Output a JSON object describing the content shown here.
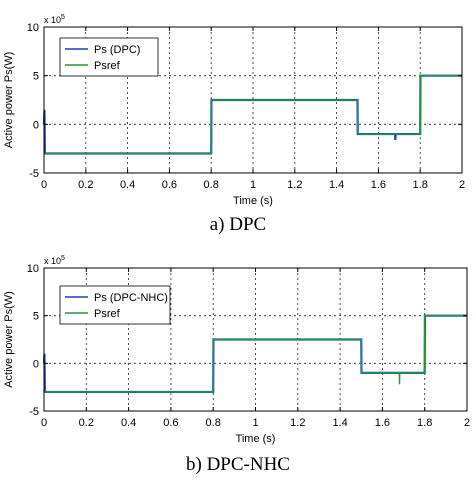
{
  "chart_data": [
    {
      "type": "line",
      "caption": "a) DPC",
      "xlabel": "Time (s)",
      "ylabel": "Active power Ps(W)",
      "exponent_base": "x 10",
      "exponent_power": "5",
      "xlim": [
        0,
        2
      ],
      "ylim": [
        -5,
        10
      ],
      "xticks": [
        0,
        0.2,
        0.4,
        0.6,
        0.8,
        1,
        1.2,
        1.4,
        1.6,
        1.8,
        2
      ],
      "xtick_labels": [
        "0",
        "0.2",
        "0.4",
        "0.6",
        "0.8",
        "1",
        "1.2",
        "1.4",
        "1.6",
        "1.8",
        "2"
      ],
      "yticks": [
        -5,
        0,
        5,
        10
      ],
      "ytick_labels": [
        "-5",
        "0",
        "5",
        "10"
      ],
      "grid": true,
      "legend_position": "top-left",
      "series": [
        {
          "name": "Ps (DPC)",
          "color": "#1f3fbf",
          "x": [
            0,
            0.002,
            0.004,
            0.8,
            0.801,
            1.5,
            1.501,
            1.68,
            1.681,
            1.682,
            1.8,
            1.801,
            2
          ],
          "y": [
            0,
            1.5,
            -3,
            -3,
            2.5,
            2.5,
            -1,
            -1,
            -1.6,
            -1,
            -1,
            5,
            5
          ]
        },
        {
          "name": "Psref",
          "color": "#1f9b3a",
          "x": [
            0,
            0.8,
            0.8,
            1.5,
            1.5,
            1.8,
            1.8,
            2
          ],
          "y": [
            -3,
            -3,
            2.5,
            2.5,
            -1,
            -1,
            5,
            5
          ]
        }
      ]
    },
    {
      "type": "line",
      "caption": "b) DPC-NHC",
      "xlabel": "Time (s)",
      "ylabel": "Active power Ps(W)",
      "exponent_base": "x 10",
      "exponent_power": "5",
      "xlim": [
        0,
        2
      ],
      "ylim": [
        -5,
        10
      ],
      "xticks": [
        0,
        0.2,
        0.4,
        0.6,
        0.8,
        1,
        1.2,
        1.4,
        1.6,
        1.8,
        2
      ],
      "xtick_labels": [
        "0",
        "0.2",
        "0.4",
        "0.6",
        "0.8",
        "1",
        "1.2",
        "1.4",
        "1.6",
        "1.8",
        "2"
      ],
      "yticks": [
        -5,
        0,
        5,
        10
      ],
      "ytick_labels": [
        "-5",
        "0",
        "5",
        "10"
      ],
      "grid": true,
      "legend_position": "top-left",
      "series": [
        {
          "name": "Ps (DPC-NHC)",
          "color": "#1f3fbf",
          "x": [
            0,
            0.002,
            0.004,
            0.8,
            0.801,
            1.5,
            1.501,
            1.8,
            1.801,
            2
          ],
          "y": [
            0,
            1.0,
            -3,
            -3,
            2.5,
            2.5,
            -1,
            -1,
            5,
            5
          ]
        },
        {
          "name": "Psref",
          "color": "#1f9b3a",
          "x": [
            0,
            0.8,
            0.8,
            1.5,
            1.5,
            1.68,
            1.681,
            1.682,
            1.8,
            1.8,
            2
          ],
          "y": [
            -3,
            -3,
            2.5,
            2.5,
            -1,
            -1,
            -2.2,
            -1,
            -1,
            5,
            5
          ]
        }
      ]
    }
  ]
}
